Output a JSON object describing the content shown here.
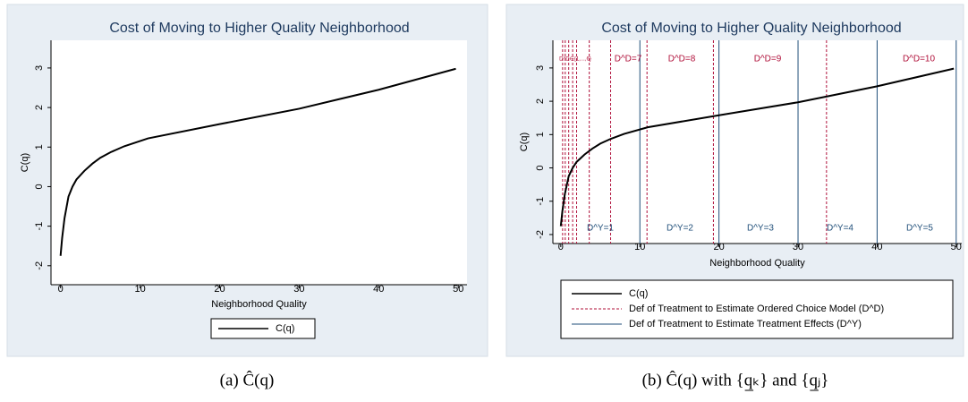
{
  "chart_data": [
    {
      "type": "line",
      "title": "Cost of Moving to Higher Quality Neighborhood",
      "xlabel": "Neighborhood Quality",
      "ylabel": "C(q)",
      "x": [
        0,
        0.2,
        0.5,
        1,
        1.5,
        2,
        3,
        4,
        5,
        6.3,
        8,
        11,
        20,
        30,
        40,
        49.7
      ],
      "series": [
        {
          "name": "C(q)",
          "color": "#000000",
          "values": [
            -1.75,
            -1.3,
            -0.8,
            -0.25,
            0.0,
            0.18,
            0.4,
            0.58,
            0.73,
            0.87,
            1.02,
            1.22,
            1.58,
            1.97,
            2.45,
            2.98
          ]
        }
      ],
      "xlim": [
        -1.2,
        51.1
      ],
      "ylim": [
        -2.48,
        3.7
      ],
      "xticks": [
        0,
        10,
        20,
        30,
        40,
        50
      ],
      "yticks": [
        -2,
        -1,
        0,
        1,
        2,
        3
      ],
      "caption": "(a) Ĉ(q)"
    },
    {
      "type": "line",
      "title": "Cost of Moving to Higher Quality Neighborhood",
      "xlabel": "Neighborhood Quality",
      "ylabel": "C(q)",
      "x": [
        0,
        0.2,
        0.5,
        1,
        1.5,
        2,
        3,
        4,
        5,
        6.3,
        8,
        11,
        20,
        30,
        40,
        49.7
      ],
      "series": [
        {
          "name": "C(q)",
          "color": "#000000",
          "values": [
            -1.75,
            -1.3,
            -0.8,
            -0.25,
            0.0,
            0.18,
            0.4,
            0.58,
            0.73,
            0.87,
            1.02,
            1.22,
            1.58,
            1.97,
            2.45,
            2.98
          ]
        }
      ],
      "reference_lines": [
        {
          "name": "Def of Treatment to Estimate Ordered Choice Model (D^D)",
          "color": "#b0103a",
          "dashed": true,
          "values": [
            0.23,
            0.56,
            1.0,
            1.5,
            2.0,
            3.6,
            6.3,
            10.9,
            19.3,
            33.6
          ]
        },
        {
          "name": "Def of Treatment to Estimate Treatment Effects (D^Y)",
          "color": "#1f4e79",
          "dashed": false,
          "values": [
            10,
            20,
            30,
            40,
            50
          ]
        }
      ],
      "annotations": [
        {
          "text": "D^D∈{1,...,6}",
          "color": "#b0103a"
        },
        {
          "text": "D^D=7",
          "color": "#b0103a"
        },
        {
          "text": "D^D=8",
          "color": "#b0103a"
        },
        {
          "text": "D^D=9",
          "color": "#b0103a"
        },
        {
          "text": "D^D=10",
          "color": "#b0103a"
        },
        {
          "text": "D^Y=1",
          "color": "#1f4e79"
        },
        {
          "text": "D^Y=2",
          "color": "#1f4e79"
        },
        {
          "text": "D^Y=3",
          "color": "#1f4e79"
        },
        {
          "text": "D^Y=4",
          "color": "#1f4e79"
        },
        {
          "text": "D^Y=5",
          "color": "#1f4e79"
        }
      ],
      "xlim": [
        -1.0,
        50.7
      ],
      "ylim": [
        -2.27,
        3.83
      ],
      "xticks": [
        0,
        10,
        20,
        30,
        40,
        50
      ],
      "yticks": [
        -2,
        -1,
        0,
        1,
        2,
        3
      ],
      "caption": "(b) Ĉ(q) with {q̲ₖ} and {q̲ⱼ}"
    }
  ]
}
